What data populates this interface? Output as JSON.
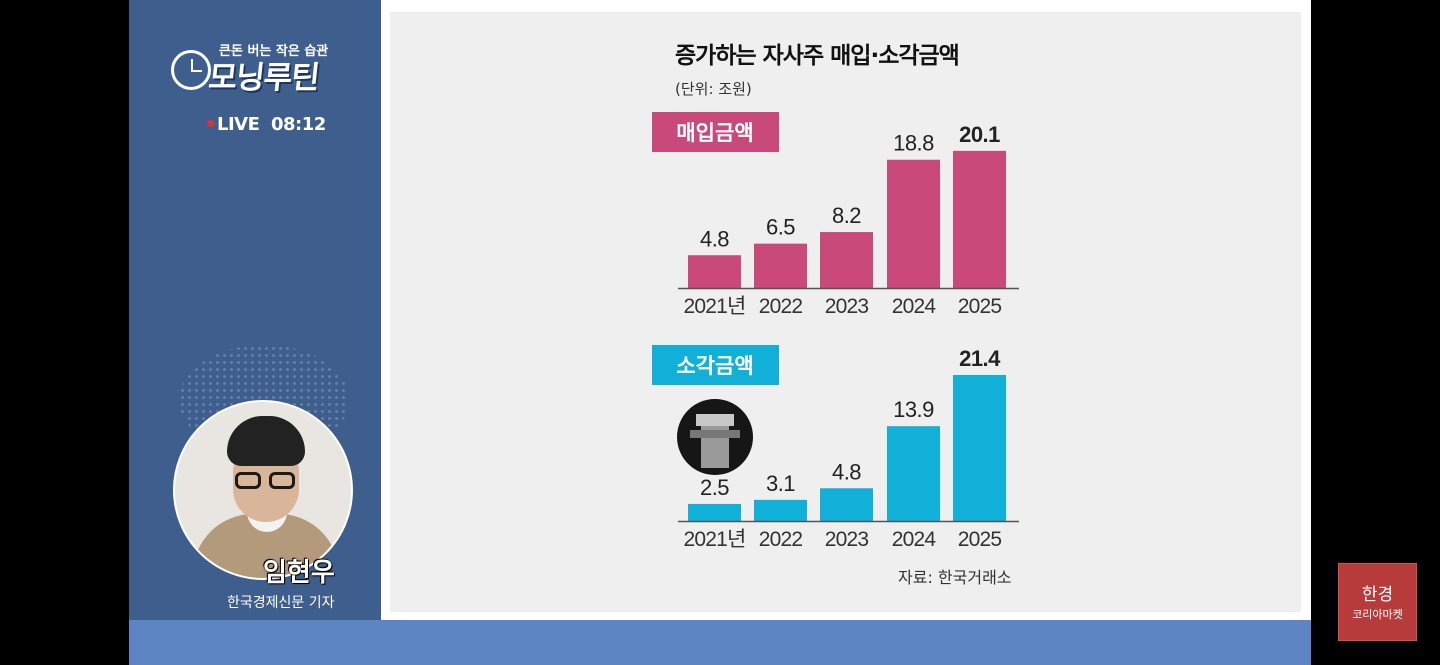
{
  "sidebar": {
    "logo_sub": "큰돈 버는 작은 습관",
    "logo_main": "모닝루틴",
    "live_label": "LIVE",
    "time": "08:12",
    "reporter_name": "임현우",
    "reporter_title": "한국경제신문 기자"
  },
  "chart": {
    "title": "증가하는 자사주 매입·소각금액",
    "unit": "(단위: 조원)",
    "source": "자료: 한국거래소"
  },
  "chart_data": [
    {
      "type": "bar",
      "title": "매입금액",
      "categories": [
        "2021년",
        "2022",
        "2023",
        "2024",
        "2025"
      ],
      "values": [
        4.8,
        6.5,
        8.2,
        18.8,
        20.1
      ],
      "labels": [
        "4.8",
        "6.5",
        "8.2",
        "18.8",
        "20.1"
      ],
      "color": "#c8497a",
      "ylim": [
        0,
        21.4
      ]
    },
    {
      "type": "bar",
      "title": "소각금액",
      "categories": [
        "2021년",
        "2022",
        "2023",
        "2024",
        "2025"
      ],
      "values": [
        2.5,
        3.1,
        4.8,
        13.9,
        21.4
      ],
      "labels": [
        "2.5",
        "3.1",
        "4.8",
        "13.9",
        "21.4"
      ],
      "color": "#11b0d8",
      "ylim": [
        0,
        21.4
      ]
    }
  ],
  "corner_logo": {
    "main": "한경",
    "sub": "코리아마켓"
  }
}
